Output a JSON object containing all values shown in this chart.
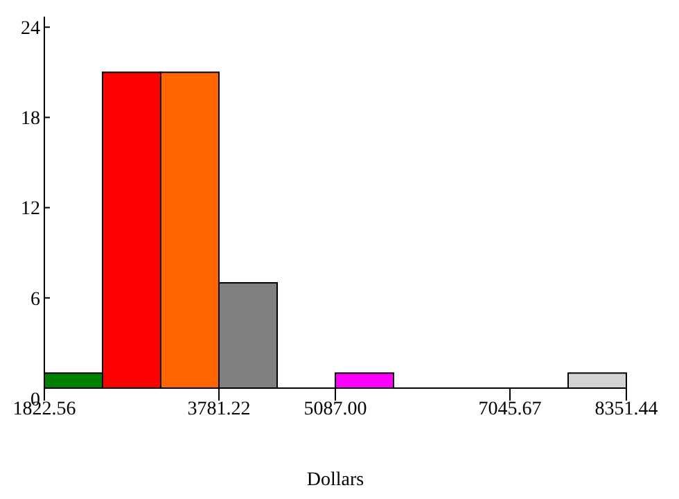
{
  "chart_data": {
    "type": "histogram",
    "xlabel": "Dollars",
    "bins": [
      1822.56,
      2475.448,
      3128.336,
      3781.22,
      4434.112,
      5087.0,
      5739.888,
      6392.776,
      7045.67,
      7698.552,
      8351.44
    ],
    "values": [
      1,
      21,
      21,
      7,
      0,
      1,
      0,
      0,
      0,
      1
    ],
    "colors": [
      "#008000",
      "#ff0000",
      "#ff6600",
      "#808080",
      null,
      "#ff00ff",
      null,
      null,
      null,
      "#d3d3d3"
    ],
    "xlim": [
      1822.56,
      8351.44
    ],
    "xticks": [
      {
        "value": 1822.56,
        "label": "1822.56"
      },
      {
        "value": 3781.22,
        "label": "3781.22"
      },
      {
        "value": 5087.0,
        "label": "5087.00"
      },
      {
        "value": 7045.67,
        "label": "7045.67"
      },
      {
        "value": 8351.44,
        "label": "8351.44"
      }
    ],
    "ylim": [
      0,
      24.7
    ],
    "yticks": [
      0,
      6,
      12,
      18,
      24
    ],
    "grid": false
  }
}
